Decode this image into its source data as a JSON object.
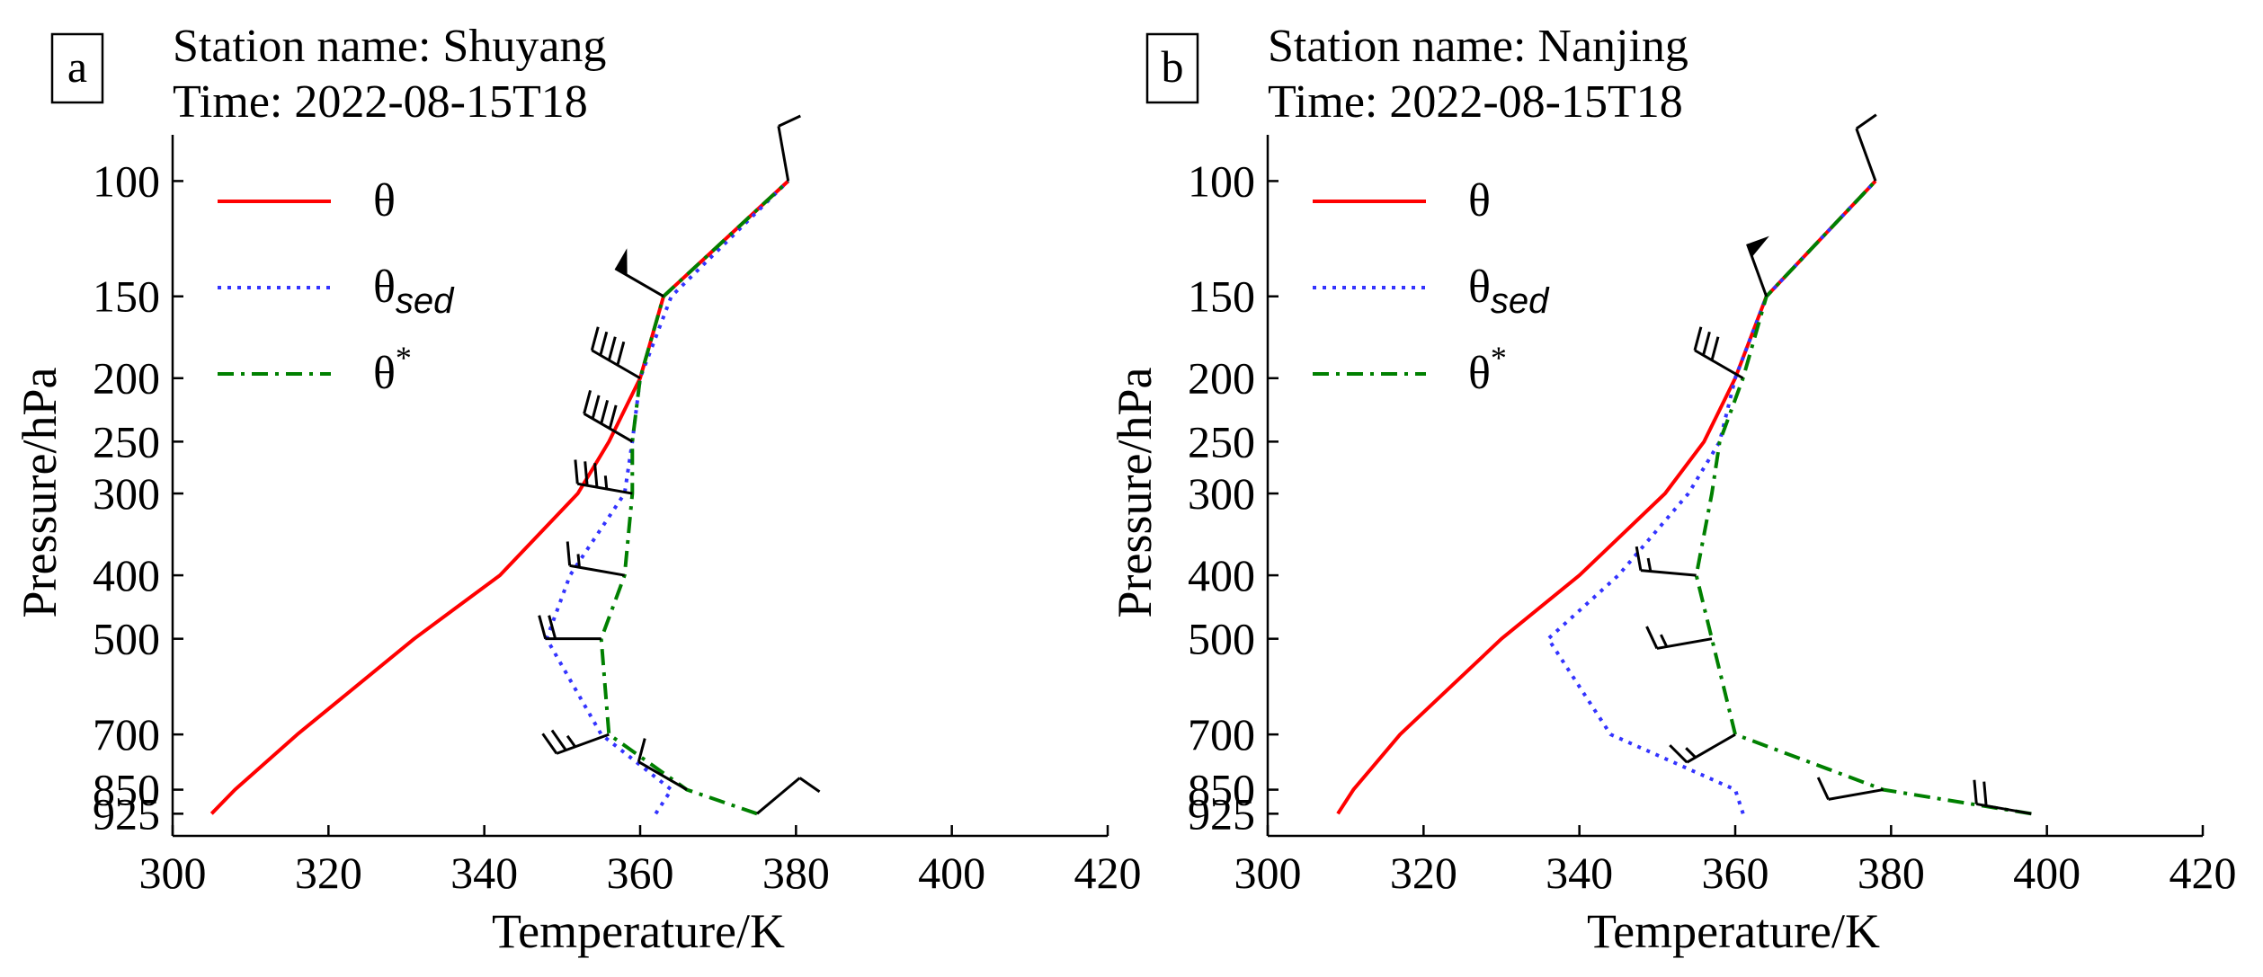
{
  "figure": {
    "shared": {
      "xlabel": "Temperature/K",
      "ylabel": "Pressure/hPa",
      "x_ticks": [
        300,
        320,
        340,
        360,
        380,
        400,
        420
      ],
      "y_ticks": [
        100,
        150,
        200,
        250,
        300,
        400,
        500,
        700,
        850,
        925
      ],
      "legend": [
        {
          "label": "θ",
          "sub": "",
          "sup": "",
          "color": "#ff0000",
          "dash": "solid"
        },
        {
          "label": "θ",
          "sub": "sed",
          "sup": "",
          "color": "#3333ff",
          "dash": "dotted"
        },
        {
          "label": "θ",
          "sub": "",
          "sup": "*",
          "color": "#008000",
          "dash": "dashdot"
        }
      ]
    }
  },
  "chart_data": [
    {
      "type": "line",
      "panel": "a",
      "title_line1": "Station name: Shuyang",
      "title_line2": "Time: 2022-08-15T18",
      "xlabel": "Temperature/K",
      "ylabel": "Pressure/hPa",
      "xlim": [
        300,
        420
      ],
      "ylim": [
        1000,
        85
      ],
      "yscale": "log",
      "legend_position": "upper-left",
      "series": [
        {
          "name": "θ",
          "color": "#ff0000",
          "style": "solid",
          "pressure": [
            925,
            850,
            700,
            500,
            400,
            300,
            250,
            200,
            150,
            100
          ],
          "values": [
            305,
            308,
            316,
            331,
            342,
            352,
            356,
            360,
            363,
            379
          ]
        },
        {
          "name": "θsed",
          "color": "#3333ff",
          "style": "dotted",
          "pressure": [
            925,
            850,
            700,
            500,
            400,
            300,
            250,
            200,
            150,
            100
          ],
          "values": [
            362,
            364,
            355,
            348,
            351,
            358,
            359,
            360,
            364,
            379
          ]
        },
        {
          "name": "θ*",
          "color": "#008000",
          "style": "dashdot",
          "pressure": [
            925,
            850,
            700,
            500,
            400,
            300,
            250,
            200,
            150,
            100
          ],
          "values": [
            375,
            366,
            356,
            355,
            358,
            359,
            359,
            360,
            363,
            379
          ]
        }
      ],
      "wind_barbs": [
        {
          "pressure": 100,
          "x": 379,
          "speed": 10,
          "dir": 350
        },
        {
          "pressure": 150,
          "x": 363,
          "speed": 50,
          "dir": 300
        },
        {
          "pressure": 200,
          "x": 360,
          "speed": 40,
          "dir": 300
        },
        {
          "pressure": 250,
          "x": 359,
          "speed": 40,
          "dir": 300
        },
        {
          "pressure": 300,
          "x": 359,
          "speed": 35,
          "dir": 280
        },
        {
          "pressure": 400,
          "x": 358,
          "speed": 15,
          "dir": 280
        },
        {
          "pressure": 500,
          "x": 355,
          "speed": 20,
          "dir": 270
        },
        {
          "pressure": 700,
          "x": 356,
          "speed": 25,
          "dir": 250
        },
        {
          "pressure": 850,
          "x": 366,
          "speed": 10,
          "dir": 300
        },
        {
          "pressure": 925,
          "x": 375,
          "speed": 10,
          "dir": 50
        }
      ]
    },
    {
      "type": "line",
      "panel": "b",
      "title_line1": "Station name: Nanjing",
      "title_line2": "Time: 2022-08-15T18",
      "xlabel": "Temperature/K",
      "ylabel": "Pressure/hPa",
      "xlim": [
        300,
        420
      ],
      "ylim": [
        1000,
        85
      ],
      "yscale": "log",
      "legend_position": "upper-left",
      "series": [
        {
          "name": "θ",
          "color": "#ff0000",
          "style": "solid",
          "pressure": [
            925,
            850,
            700,
            500,
            400,
            300,
            250,
            200,
            150,
            100
          ],
          "values": [
            309,
            311,
            317,
            330,
            340,
            351,
            356,
            360,
            364,
            378
          ]
        },
        {
          "name": "θsed",
          "color": "#3333ff",
          "style": "dotted",
          "pressure": [
            925,
            850,
            700,
            500,
            400,
            300,
            250,
            200,
            150,
            100
          ],
          "values": [
            361,
            360,
            344,
            336,
            345,
            354,
            358,
            360,
            364,
            378
          ]
        },
        {
          "name": "θ*",
          "color": "#008000",
          "style": "dashdot",
          "pressure": [
            925,
            850,
            700,
            500,
            400,
            300,
            250,
            200,
            150,
            100
          ],
          "values": [
            398,
            379,
            360,
            357,
            355,
            357,
            358,
            361,
            364,
            378
          ]
        }
      ],
      "wind_barbs": [
        {
          "pressure": 100,
          "x": 378,
          "speed": 10,
          "dir": 340
        },
        {
          "pressure": 150,
          "x": 364,
          "speed": 50,
          "dir": 340
        },
        {
          "pressure": 200,
          "x": 361,
          "speed": 30,
          "dir": 300
        },
        {
          "pressure": 400,
          "x": 355,
          "speed": 15,
          "dir": 275
        },
        {
          "pressure": 500,
          "x": 357,
          "speed": 15,
          "dir": 260
        },
        {
          "pressure": 700,
          "x": 360,
          "speed": 15,
          "dir": 240
        },
        {
          "pressure": 850,
          "x": 379,
          "speed": 10,
          "dir": 260
        },
        {
          "pressure": 925,
          "x": 398,
          "speed": 20,
          "dir": 280
        }
      ]
    }
  ]
}
